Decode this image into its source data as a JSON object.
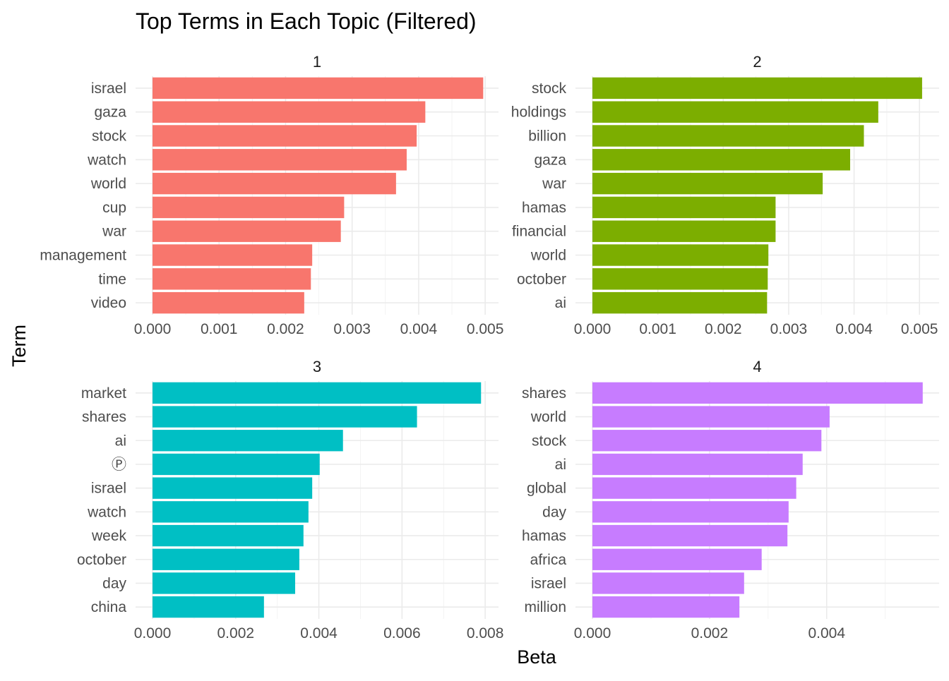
{
  "chart_data": {
    "type": "bar",
    "orientation": "horizontal",
    "title": "Top Terms in Each Topic (Filtered)",
    "xlabel": "Beta",
    "ylabel": "Term",
    "grid": true,
    "legend": "none",
    "facets": [
      {
        "label": "1",
        "color": "#F8766D",
        "xlim": [
          0,
          0.0052
        ],
        "xticks": [
          "0.000",
          "0.001",
          "0.002",
          "0.003",
          "0.004",
          "0.005"
        ],
        "xtick_values": [
          0,
          0.001,
          0.002,
          0.003,
          0.004,
          0.005
        ],
        "categories": [
          "israel",
          "gaza",
          "stock",
          "watch",
          "world",
          "cup",
          "war",
          "management",
          "time",
          "video"
        ],
        "values": [
          0.00497,
          0.0041,
          0.00397,
          0.00382,
          0.00366,
          0.00288,
          0.00283,
          0.0024,
          0.00238,
          0.00228
        ]
      },
      {
        "label": "2",
        "color": "#7CAE00",
        "xlim": [
          0,
          0.0053
        ],
        "xticks": [
          "0.000",
          "0.001",
          "0.002",
          "0.003",
          "0.004",
          "0.005"
        ],
        "xtick_values": [
          0,
          0.001,
          0.002,
          0.003,
          0.004,
          0.005
        ],
        "categories": [
          "stock",
          "holdings",
          "billion",
          "gaza",
          "war",
          "hamas",
          "financial",
          "world",
          "october",
          "ai"
        ],
        "values": [
          0.00504,
          0.00437,
          0.00415,
          0.00394,
          0.00352,
          0.0028,
          0.0028,
          0.00269,
          0.00268,
          0.00267
        ]
      },
      {
        "label": "3",
        "color": "#00BFC4",
        "xlim": [
          0,
          0.00832
        ],
        "xticks": [
          "0.000",
          "0.002",
          "0.004",
          "0.006",
          "0.008"
        ],
        "xtick_values": [
          0,
          0.002,
          0.004,
          0.006,
          0.008
        ],
        "categories": [
          "market",
          "shares",
          "ai",
          "Ⓟ",
          "israel",
          "watch",
          "week",
          "october",
          "day",
          "china"
        ],
        "values": [
          0.0079,
          0.00636,
          0.00458,
          0.00402,
          0.00384,
          0.00375,
          0.00363,
          0.00353,
          0.00343,
          0.00268
        ]
      },
      {
        "label": "4",
        "color": "#C77CFF",
        "xlim": [
          0,
          0.00592
        ],
        "xticks": [
          "0.000",
          "0.002",
          "0.004"
        ],
        "xtick_values": [
          0,
          0.002,
          0.004
        ],
        "categories": [
          "shares",
          "world",
          "stock",
          "ai",
          "global",
          "day",
          "hamas",
          "africa",
          "israel",
          "million"
        ],
        "values": [
          0.00564,
          0.00405,
          0.00391,
          0.00359,
          0.00348,
          0.00335,
          0.00333,
          0.00289,
          0.00259,
          0.00251
        ]
      }
    ]
  }
}
